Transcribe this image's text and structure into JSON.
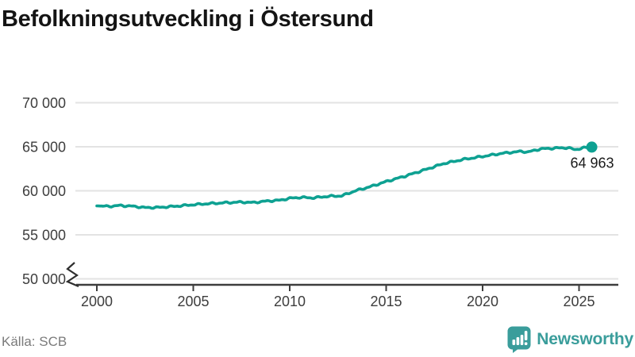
{
  "title": "Befolkningsutveckling i Östersund",
  "source": "Källa: SCB",
  "branding": {
    "name": "Newsworthy",
    "logo_icon": "bar-chart-speech-bubble-icon"
  },
  "colors": {
    "line": "#0ea192",
    "brand_teal": "#3a9d9b",
    "grid": "#e3e3e3",
    "axis": "#3d3d3d",
    "title_text": "#141414",
    "muted_text": "#7b7b7b"
  },
  "chart_data": {
    "type": "line",
    "title": "Befolkningsutveckling i Östersund",
    "xlabel": "",
    "ylabel": "",
    "x_tick_labels": [
      "2000",
      "2005",
      "2010",
      "2015",
      "2020",
      "2025"
    ],
    "x_ticks": [
      2000,
      2005,
      2010,
      2015,
      2020,
      2025
    ],
    "y_tick_labels": [
      "70 000",
      "65 000",
      "60 000",
      "55 000",
      "50 000"
    ],
    "y_ticks": [
      70000,
      65000,
      60000,
      55000,
      50000
    ],
    "xlim": [
      1999.4,
      2027
    ],
    "ylim": [
      50000,
      70800
    ],
    "axis_break": true,
    "grid": "horizontal",
    "legend": "none",
    "end_label": "64 963",
    "end_value": 64963,
    "series": [
      {
        "name": "Befolkning",
        "color": "#0ea192",
        "points": [
          [
            2000.0,
            58290
          ],
          [
            2000.6,
            58230
          ],
          [
            2001.2,
            58330
          ],
          [
            2001.9,
            58240
          ],
          [
            2002.5,
            58090
          ],
          [
            2003.2,
            58110
          ],
          [
            2004.0,
            58230
          ],
          [
            2005.0,
            58420
          ],
          [
            2005.8,
            58540
          ],
          [
            2006.7,
            58650
          ],
          [
            2007.5,
            58720
          ],
          [
            2008.1,
            58660
          ],
          [
            2008.8,
            58830
          ],
          [
            2009.5,
            58930
          ],
          [
            2010.0,
            59150
          ],
          [
            2010.6,
            59260
          ],
          [
            2011.2,
            59190
          ],
          [
            2012.0,
            59380
          ],
          [
            2012.7,
            59420
          ],
          [
            2013.4,
            60000
          ],
          [
            2014.2,
            60480
          ],
          [
            2015.0,
            61050
          ],
          [
            2016.0,
            61680
          ],
          [
            2017.0,
            62380
          ],
          [
            2018.0,
            63100
          ],
          [
            2019.0,
            63560
          ],
          [
            2020.0,
            63900
          ],
          [
            2021.0,
            64250
          ],
          [
            2022.0,
            64480
          ],
          [
            2022.35,
            64400
          ],
          [
            2023.0,
            64760
          ],
          [
            2023.8,
            64850
          ],
          [
            2024.4,
            64890
          ],
          [
            2024.8,
            64680
          ],
          [
            2025.2,
            64860
          ],
          [
            2025.66,
            64963
          ]
        ]
      }
    ]
  }
}
